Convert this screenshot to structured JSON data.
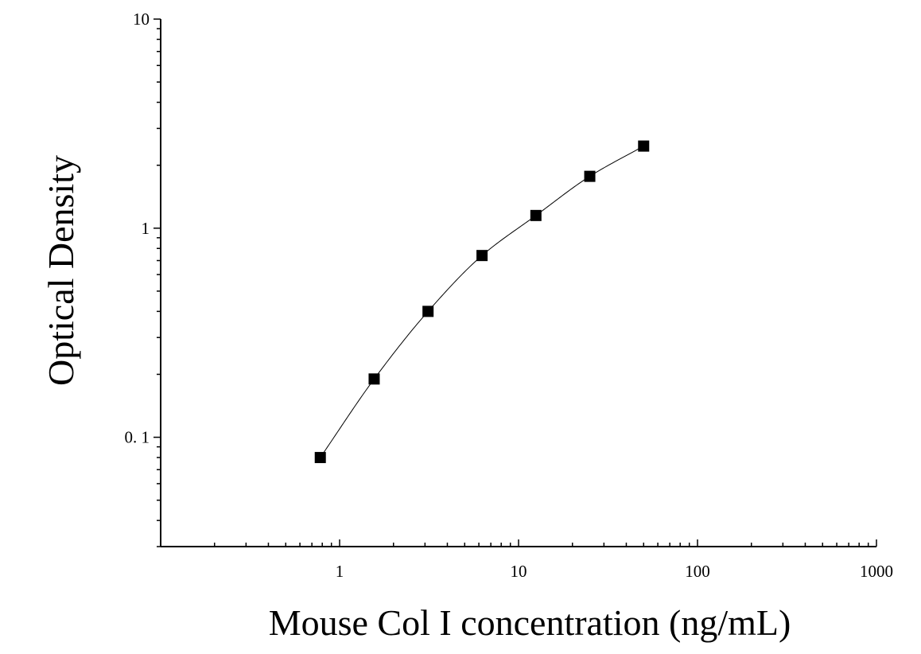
{
  "chart_data": {
    "type": "scatter",
    "title": "",
    "xlabel": "Mouse Col I concentration (ng/mL)",
    "ylabel": "Optical Density",
    "x_scale": "log",
    "y_scale": "log",
    "xlim": [
      0.1,
      1000
    ],
    "ylim": [
      0.03,
      10
    ],
    "x_ticks": [
      {
        "value": 1,
        "label": "1"
      },
      {
        "value": 10,
        "label": "10"
      },
      {
        "value": 100,
        "label": "100"
      },
      {
        "value": 1000,
        "label": "1000"
      }
    ],
    "y_ticks": [
      {
        "value": 0.1,
        "label": "0. 1"
      },
      {
        "value": 1,
        "label": "1"
      },
      {
        "value": 10,
        "label": "10"
      }
    ],
    "grid": false,
    "legend": "none",
    "series": [
      {
        "marker": "square",
        "color": "#000000",
        "points": [
          {
            "x": 0.78,
            "y": 0.08
          },
          {
            "x": 1.56,
            "y": 0.19
          },
          {
            "x": 3.12,
            "y": 0.4
          },
          {
            "x": 6.25,
            "y": 0.74
          },
          {
            "x": 12.5,
            "y": 1.15
          },
          {
            "x": 25,
            "y": 1.77
          },
          {
            "x": 50,
            "y": 2.47
          }
        ]
      }
    ],
    "fit_curve": {
      "type": "smooth",
      "color": "#000000",
      "x_range": [
        0.75,
        50
      ]
    }
  }
}
